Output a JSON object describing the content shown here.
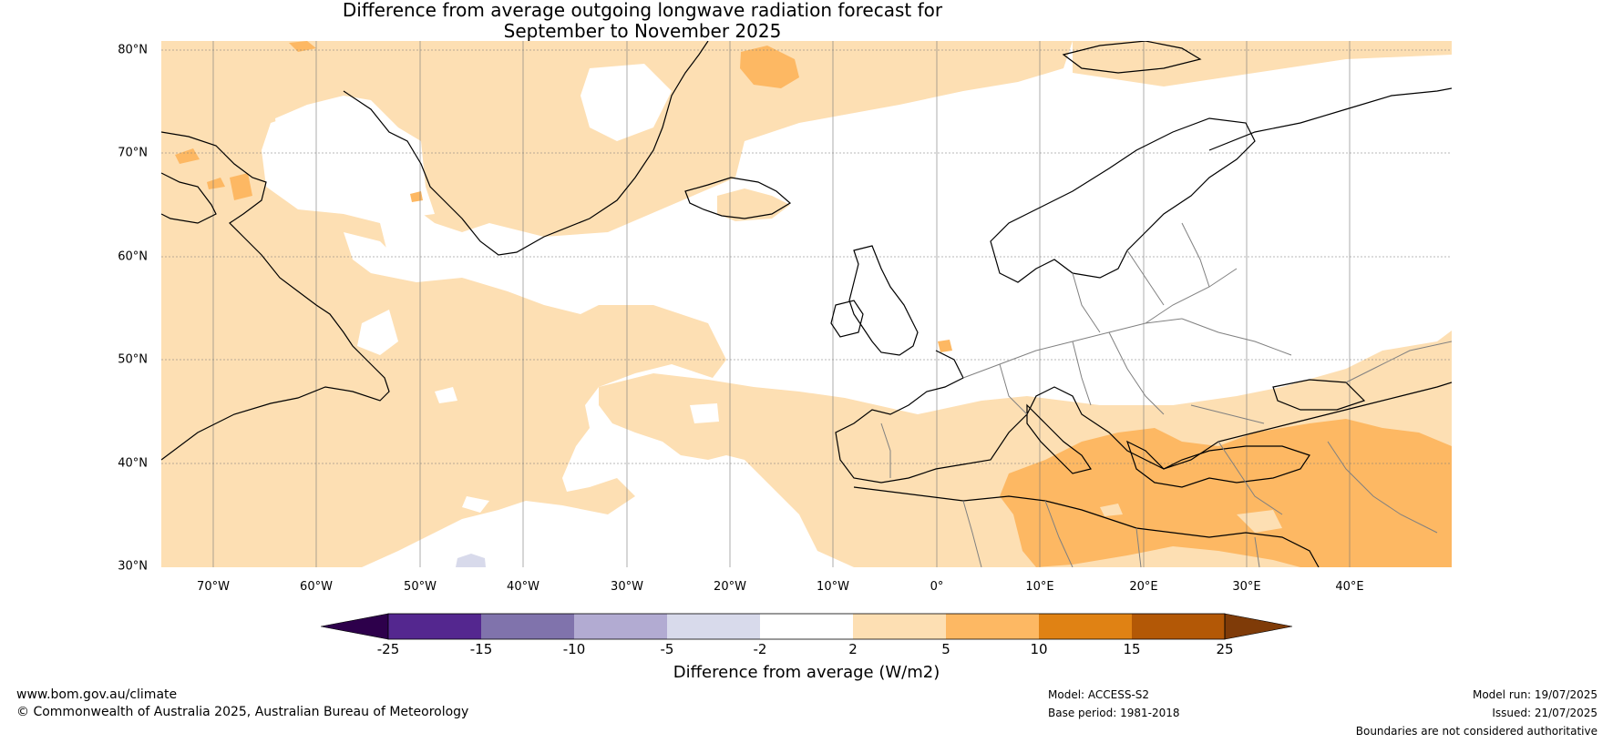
{
  "header": {
    "title_line1": "Difference from average outgoing longwave radiation forecast for",
    "title_line2": "September to November 2025"
  },
  "map": {
    "lat_labels": [
      "80°N",
      "70°N",
      "60°N",
      "50°N",
      "40°N",
      "30°N"
    ],
    "lon_labels": [
      "70°W",
      "60°W",
      "50°W",
      "40°W",
      "30°W",
      "20°W",
      "10°W",
      "0°",
      "10°E",
      "20°E",
      "30°E",
      "40°E"
    ],
    "colors": {
      "band_m25_m15": "#54278f",
      "band_m15_m10": "#8073ac",
      "band_m10_m5": "#b2abd2",
      "band_m5_m2": "#d8daeb",
      "band_m2_2": "#ffffff",
      "band_2_5": "#fddfb3",
      "band_5_10": "#fdb863",
      "band_10_15": "#e08214",
      "band_15_25": "#b35806",
      "under": "#2d004b",
      "over": "#7f3b08",
      "coast": "#000000",
      "borders": "#808080"
    }
  },
  "legend": {
    "ticks": [
      "-25",
      "-15",
      "-10",
      "-5",
      "-2",
      "2",
      "5",
      "10",
      "15",
      "25"
    ],
    "label": "Difference from average (W/m2)"
  },
  "footer": {
    "website": "www.bom.gov.au/climate",
    "copyright": "© Commonwealth of Australia 2025, Australian Bureau of Meteorology",
    "model": "Model: ACCESS-S2",
    "base_period": "Base period: 1981-2018",
    "model_run": "Model run: 19/07/2025",
    "issued": "Issued: 21/07/2025",
    "disclaimer": "Boundaries are not considered authoritative"
  }
}
